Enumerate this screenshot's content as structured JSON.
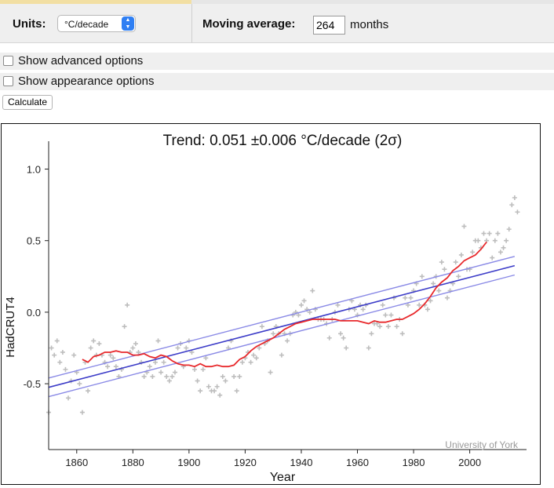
{
  "controls": {
    "units_label": "Units:",
    "units_value": "°C/decade",
    "moving_average_label": "Moving average:",
    "moving_average_value": "264",
    "moving_average_unit": "months"
  },
  "options": {
    "advanced_label": "Show advanced options",
    "appearance_label": "Show appearance options"
  },
  "calculate_label": "Calculate",
  "chart_data": {
    "type": "scatter",
    "title": "Trend: 0.051 ±0.006 °C/decade (2σ)",
    "xlabel": "Year",
    "ylabel": "HadCRUT4",
    "credit": "University of York",
    "xlim": [
      1850,
      2018
    ],
    "ylim": [
      -0.96,
      1.14
    ],
    "x_ticks": [
      1860,
      1880,
      1900,
      1920,
      1940,
      1960,
      1980,
      2000
    ],
    "y_ticks": [
      -0.5,
      0.0,
      0.5,
      1.0
    ],
    "y_tick_labels": [
      "-0.5",
      "0.0",
      "0.5",
      "1.0"
    ],
    "monthly_anomaly_points": [
      [
        1850,
        -0.7
      ],
      [
        1851,
        -0.25
      ],
      [
        1852,
        -0.3
      ],
      [
        1853,
        -0.2
      ],
      [
        1854,
        -0.35
      ],
      [
        1855,
        -0.28
      ],
      [
        1856,
        -0.4
      ],
      [
        1857,
        -0.6
      ],
      [
        1858,
        -0.48
      ],
      [
        1859,
        -0.3
      ],
      [
        1860,
        -0.42
      ],
      [
        1861,
        -0.5
      ],
      [
        1862,
        -0.7
      ],
      [
        1863,
        -0.35
      ],
      [
        1864,
        -0.55
      ],
      [
        1865,
        -0.25
      ],
      [
        1866,
        -0.2
      ],
      [
        1867,
        -0.3
      ],
      [
        1868,
        -0.22
      ],
      [
        1869,
        -0.3
      ],
      [
        1870,
        -0.35
      ],
      [
        1871,
        -0.38
      ],
      [
        1872,
        -0.3
      ],
      [
        1873,
        -0.32
      ],
      [
        1874,
        -0.38
      ],
      [
        1875,
        -0.45
      ],
      [
        1876,
        -0.4
      ],
      [
        1877,
        -0.1
      ],
      [
        1878,
        0.05
      ],
      [
        1879,
        -0.28
      ],
      [
        1880,
        -0.25
      ],
      [
        1881,
        -0.22
      ],
      [
        1882,
        -0.28
      ],
      [
        1883,
        -0.35
      ],
      [
        1884,
        -0.45
      ],
      [
        1885,
        -0.42
      ],
      [
        1886,
        -0.38
      ],
      [
        1887,
        -0.45
      ],
      [
        1888,
        -0.35
      ],
      [
        1889,
        -0.2
      ],
      [
        1890,
        -0.42
      ],
      [
        1891,
        -0.35
      ],
      [
        1892,
        -0.45
      ],
      [
        1893,
        -0.48
      ],
      [
        1894,
        -0.45
      ],
      [
        1895,
        -0.42
      ],
      [
        1896,
        -0.25
      ],
      [
        1897,
        -0.22
      ],
      [
        1898,
        -0.38
      ],
      [
        1899,
        -0.25
      ],
      [
        1900,
        -0.2
      ],
      [
        1901,
        -0.28
      ],
      [
        1902,
        -0.4
      ],
      [
        1903,
        -0.48
      ],
      [
        1904,
        -0.55
      ],
      [
        1905,
        -0.4
      ],
      [
        1906,
        -0.32
      ],
      [
        1907,
        -0.52
      ],
      [
        1908,
        -0.55
      ],
      [
        1909,
        -0.55
      ],
      [
        1910,
        -0.52
      ],
      [
        1911,
        -0.58
      ],
      [
        1912,
        -0.45
      ],
      [
        1913,
        -0.48
      ],
      [
        1914,
        -0.25
      ],
      [
        1915,
        -0.2
      ],
      [
        1916,
        -0.45
      ],
      [
        1917,
        -0.55
      ],
      [
        1918,
        -0.45
      ],
      [
        1919,
        -0.35
      ],
      [
        1920,
        -0.32
      ],
      [
        1921,
        -0.28
      ],
      [
        1922,
        -0.35
      ],
      [
        1923,
        -0.3
      ],
      [
        1924,
        -0.32
      ],
      [
        1925,
        -0.25
      ],
      [
        1926,
        -0.1
      ],
      [
        1927,
        -0.22
      ],
      [
        1928,
        -0.2
      ],
      [
        1929,
        -0.42
      ],
      [
        1930,
        -0.15
      ],
      [
        1931,
        -0.1
      ],
      [
        1932,
        -0.15
      ],
      [
        1933,
        -0.3
      ],
      [
        1934,
        -0.15
      ],
      [
        1935,
        -0.2
      ],
      [
        1936,
        -0.15
      ],
      [
        1937,
        -0.02
      ],
      [
        1938,
        0.0
      ],
      [
        1939,
        -0.02
      ],
      [
        1940,
        0.05
      ],
      [
        1941,
        0.08
      ],
      [
        1942,
        0.02
      ],
      [
        1943,
        0.0
      ],
      [
        1944,
        0.15
      ],
      [
        1945,
        0.02
      ],
      [
        1946,
        -0.05
      ],
      [
        1947,
        -0.05
      ],
      [
        1948,
        -0.05
      ],
      [
        1949,
        -0.08
      ],
      [
        1950,
        -0.18
      ],
      [
        1951,
        -0.05
      ],
      [
        1952,
        0.0
      ],
      [
        1953,
        0.05
      ],
      [
        1954,
        -0.15
      ],
      [
        1955,
        -0.18
      ],
      [
        1956,
        -0.25
      ],
      [
        1957,
        0.02
      ],
      [
        1958,
        0.08
      ],
      [
        1959,
        0.02
      ],
      [
        1960,
        -0.02
      ],
      [
        1961,
        0.05
      ],
      [
        1962,
        0.02
      ],
      [
        1963,
        0.05
      ],
      [
        1964,
        -0.25
      ],
      [
        1965,
        -0.15
      ],
      [
        1966,
        -0.08
      ],
      [
        1967,
        -0.08
      ],
      [
        1968,
        -0.1
      ],
      [
        1969,
        0.05
      ],
      [
        1970,
        -0.02
      ],
      [
        1971,
        -0.1
      ],
      [
        1972,
        -0.02
      ],
      [
        1973,
        0.1
      ],
      [
        1974,
        -0.1
      ],
      [
        1975,
        -0.05
      ],
      [
        1976,
        -0.15
      ],
      [
        1977,
        0.1
      ],
      [
        1978,
        0.05
      ],
      [
        1979,
        0.1
      ],
      [
        1980,
        0.15
      ],
      [
        1981,
        0.2
      ],
      [
        1982,
        0.05
      ],
      [
        1983,
        0.25
      ],
      [
        1984,
        0.05
      ],
      [
        1985,
        0.02
      ],
      [
        1986,
        0.08
      ],
      [
        1987,
        0.2
      ],
      [
        1988,
        0.25
      ],
      [
        1989,
        0.15
      ],
      [
        1990,
        0.35
      ],
      [
        1991,
        0.3
      ],
      [
        1992,
        0.1
      ],
      [
        1993,
        0.15
      ],
      [
        1994,
        0.2
      ],
      [
        1995,
        0.35
      ],
      [
        1996,
        0.25
      ],
      [
        1997,
        0.4
      ],
      [
        1998,
        0.6
      ],
      [
        1999,
        0.3
      ],
      [
        2000,
        0.3
      ],
      [
        2001,
        0.42
      ],
      [
        2002,
        0.5
      ],
      [
        2003,
        0.5
      ],
      [
        2004,
        0.45
      ],
      [
        2005,
        0.55
      ],
      [
        2006,
        0.5
      ],
      [
        2007,
        0.55
      ],
      [
        2008,
        0.38
      ],
      [
        2009,
        0.5
      ],
      [
        2010,
        0.55
      ],
      [
        2011,
        0.42
      ],
      [
        2012,
        0.45
      ],
      [
        2013,
        0.5
      ],
      [
        2014,
        0.58
      ],
      [
        2015,
        0.75
      ],
      [
        2016,
        0.8
      ],
      [
        2017,
        0.7
      ]
    ],
    "moving_average": {
      "x": [
        1862,
        1864,
        1866,
        1868,
        1870,
        1872,
        1874,
        1876,
        1878,
        1880,
        1882,
        1884,
        1886,
        1888,
        1890,
        1892,
        1894,
        1896,
        1898,
        1900,
        1902,
        1904,
        1906,
        1908,
        1910,
        1912,
        1914,
        1916,
        1918,
        1920,
        1922,
        1924,
        1926,
        1928,
        1930,
        1932,
        1934,
        1936,
        1938,
        1940,
        1942,
        1944,
        1946,
        1948,
        1950,
        1952,
        1954,
        1956,
        1958,
        1960,
        1962,
        1964,
        1966,
        1968,
        1970,
        1972,
        1974,
        1976,
        1978,
        1980,
        1982,
        1984,
        1986,
        1988,
        1990,
        1992,
        1994,
        1996,
        1998,
        2000,
        2002,
        2004,
        2006
      ],
      "y": [
        -0.33,
        -0.35,
        -0.31,
        -0.3,
        -0.28,
        -0.28,
        -0.27,
        -0.28,
        -0.28,
        -0.3,
        -0.3,
        -0.29,
        -0.31,
        -0.32,
        -0.3,
        -0.31,
        -0.34,
        -0.36,
        -0.37,
        -0.37,
        -0.38,
        -0.36,
        -0.38,
        -0.38,
        -0.37,
        -0.38,
        -0.38,
        -0.37,
        -0.33,
        -0.31,
        -0.27,
        -0.24,
        -0.22,
        -0.2,
        -0.18,
        -0.15,
        -0.12,
        -0.1,
        -0.08,
        -0.07,
        -0.06,
        -0.05,
        -0.05,
        -0.05,
        -0.05,
        -0.05,
        -0.06,
        -0.06,
        -0.06,
        -0.06,
        -0.07,
        -0.08,
        -0.06,
        -0.07,
        -0.07,
        -0.06,
        -0.05,
        -0.05,
        -0.03,
        -0.01,
        0.02,
        0.06,
        0.11,
        0.17,
        0.21,
        0.24,
        0.29,
        0.32,
        0.36,
        0.38,
        0.4,
        0.44,
        0.49
      ]
    },
    "trend_line": {
      "x": [
        1850,
        2016
      ],
      "y": [
        -0.525,
        0.325
      ]
    },
    "confidence_band": {
      "x": [
        1850,
        2016
      ],
      "upper": [
        -0.46,
        0.39
      ],
      "lower": [
        -0.59,
        0.26
      ]
    },
    "colors": {
      "points": "#bdbdbd",
      "moving_average": "#e8292c",
      "trend": "#3c3cc8",
      "band": "#8a8ae6"
    },
    "grid": false
  }
}
